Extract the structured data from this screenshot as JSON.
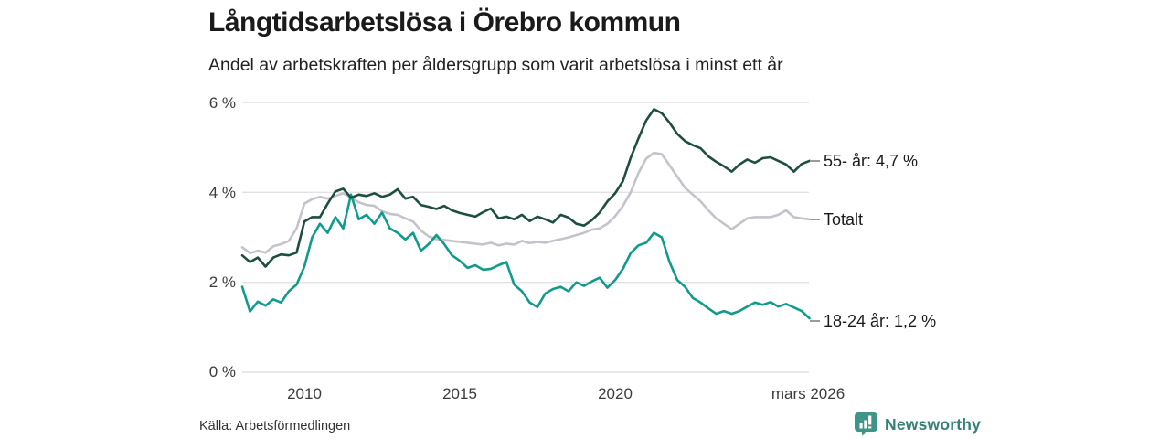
{
  "header": {
    "title": "Långtidsarbetslösa i Örebro kommun",
    "subtitle": "Andel av arbetskraften per åldersgrupp som varit arbetslösa i minst ett år"
  },
  "chart_data": {
    "type": "line",
    "title": "Långtidsarbetslösa i Örebro kommun",
    "subtitle": "Andel av arbetskraften per åldersgrupp som varit arbetslösa i minst ett år",
    "grid": "horizontal-only",
    "legend_position": "right-of-line-ends",
    "ylim": [
      0,
      6
    ],
    "x_range": [
      2008.0,
      2026.25
    ],
    "yticks": [
      {
        "value": 6,
        "label": "6 %"
      },
      {
        "value": 4,
        "label": "4 %"
      },
      {
        "value": 2,
        "label": "2 %"
      },
      {
        "value": 0,
        "label": "0 %"
      }
    ],
    "xticks": [
      {
        "value": 2010,
        "label": "2010"
      },
      {
        "value": 2015,
        "label": "2015"
      },
      {
        "value": 2020,
        "label": "2020"
      },
      {
        "value": 2026.25,
        "label": "mars 2026"
      }
    ],
    "x": [
      2008.0,
      2008.25,
      2008.5,
      2008.75,
      2009.0,
      2009.25,
      2009.5,
      2009.75,
      2010.0,
      2010.25,
      2010.5,
      2010.75,
      2011.0,
      2011.25,
      2011.5,
      2011.75,
      2012.0,
      2012.25,
      2012.5,
      2012.75,
      2013.0,
      2013.25,
      2013.5,
      2013.75,
      2014.0,
      2014.25,
      2014.5,
      2014.75,
      2015.0,
      2015.25,
      2015.5,
      2015.75,
      2016.0,
      2016.25,
      2016.5,
      2016.75,
      2017.0,
      2017.25,
      2017.5,
      2017.75,
      2018.0,
      2018.25,
      2018.5,
      2018.75,
      2019.0,
      2019.25,
      2019.5,
      2019.75,
      2020.0,
      2020.25,
      2020.5,
      2020.75,
      2021.0,
      2021.25,
      2021.5,
      2021.75,
      2022.0,
      2022.25,
      2022.5,
      2022.75,
      2023.0,
      2023.25,
      2023.5,
      2023.75,
      2024.0,
      2024.25,
      2024.5,
      2024.75,
      2025.0,
      2025.25,
      2025.5,
      2025.75,
      2026.0,
      2026.25
    ],
    "series": [
      {
        "id": "55plus",
        "name": "55- år",
        "end_label": "55- år: 4,7 %",
        "last_value": 4.7,
        "color": "#1d4e41",
        "z": 3,
        "values": [
          2.6,
          2.45,
          2.55,
          2.35,
          2.55,
          2.62,
          2.6,
          2.66,
          3.35,
          3.45,
          3.45,
          3.75,
          4.02,
          4.08,
          3.88,
          3.95,
          3.92,
          3.98,
          3.9,
          3.95,
          4.07,
          3.86,
          3.9,
          3.72,
          3.68,
          3.63,
          3.7,
          3.6,
          3.54,
          3.5,
          3.46,
          3.56,
          3.64,
          3.42,
          3.46,
          3.4,
          3.5,
          3.36,
          3.46,
          3.4,
          3.33,
          3.5,
          3.44,
          3.3,
          3.26,
          3.38,
          3.55,
          3.8,
          3.98,
          4.25,
          4.77,
          5.2,
          5.6,
          5.85,
          5.76,
          5.55,
          5.3,
          5.14,
          5.05,
          4.98,
          4.8,
          4.68,
          4.58,
          4.46,
          4.62,
          4.73,
          4.66,
          4.76,
          4.78,
          4.7,
          4.62,
          4.46,
          4.63,
          4.7
        ]
      },
      {
        "id": "totalt",
        "name": "Totalt",
        "end_label": "Totalt",
        "last_value": 3.4,
        "color": "#c4c3cb",
        "z": 1,
        "values": [
          2.78,
          2.65,
          2.7,
          2.66,
          2.8,
          2.85,
          2.92,
          3.2,
          3.75,
          3.85,
          3.9,
          3.86,
          3.92,
          3.98,
          3.88,
          3.78,
          3.72,
          3.7,
          3.58,
          3.52,
          3.5,
          3.42,
          3.35,
          3.15,
          3.02,
          2.96,
          2.94,
          2.92,
          2.9,
          2.88,
          2.86,
          2.84,
          2.88,
          2.82,
          2.86,
          2.84,
          2.92,
          2.87,
          2.9,
          2.88,
          2.92,
          2.96,
          3.0,
          3.05,
          3.1,
          3.17,
          3.2,
          3.3,
          3.47,
          3.7,
          4.0,
          4.43,
          4.75,
          4.88,
          4.85,
          4.6,
          4.35,
          4.1,
          3.95,
          3.8,
          3.6,
          3.42,
          3.3,
          3.18,
          3.3,
          3.42,
          3.45,
          3.45,
          3.45,
          3.5,
          3.6,
          3.45,
          3.42,
          3.4
        ]
      },
      {
        "id": "18-24",
        "name": "18-24 år",
        "end_label": "18-24 år: 1,2 %",
        "last_value": 1.2,
        "color": "#119b8c",
        "z": 2,
        "values": [
          1.9,
          1.35,
          1.57,
          1.48,
          1.62,
          1.55,
          1.8,
          1.95,
          2.35,
          3.0,
          3.3,
          3.1,
          3.45,
          3.2,
          3.95,
          3.4,
          3.5,
          3.3,
          3.55,
          3.2,
          3.1,
          2.95,
          3.1,
          2.7,
          2.85,
          3.05,
          2.85,
          2.6,
          2.48,
          2.32,
          2.38,
          2.28,
          2.3,
          2.38,
          2.45,
          1.95,
          1.8,
          1.55,
          1.45,
          1.75,
          1.85,
          1.9,
          1.8,
          2.0,
          1.92,
          2.02,
          2.1,
          1.88,
          2.05,
          2.3,
          2.65,
          2.82,
          2.88,
          3.1,
          3.0,
          2.45,
          2.05,
          1.9,
          1.65,
          1.55,
          1.42,
          1.3,
          1.36,
          1.3,
          1.36,
          1.46,
          1.55,
          1.5,
          1.56,
          1.46,
          1.52,
          1.44,
          1.36,
          1.2
        ]
      }
    ]
  },
  "footer": {
    "source": "Källa: Arbetsförmedlingen",
    "logo_text": "Newsworthy",
    "logo_icon": "bar-chart-speech-bubble",
    "logo_color": "#3e9488"
  }
}
